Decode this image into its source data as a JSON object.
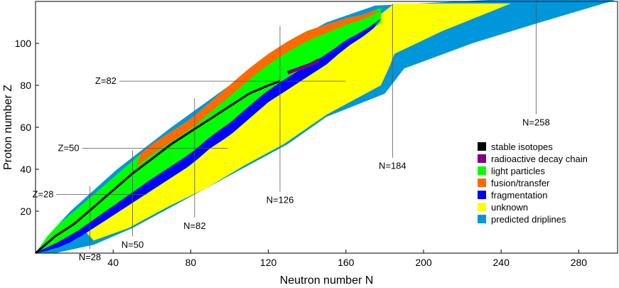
{
  "chart_data": {
    "type": "heatmap",
    "xlabel": "Neutron number N",
    "ylabel": "Proton number Z",
    "xlim": [
      0,
      300
    ],
    "ylim": [
      0,
      120
    ],
    "x_ticks": [
      40,
      80,
      120,
      160,
      200,
      240,
      280
    ],
    "y_ticks": [
      20,
      40,
      60,
      80,
      100
    ],
    "grid": false,
    "legend_position": "right",
    "legend": [
      {
        "key": "stable",
        "label": "stable isotopes",
        "color": "#000000"
      },
      {
        "key": "decay",
        "label": "radioactive decay chain",
        "color": "#800080"
      },
      {
        "key": "light",
        "label": "light particles",
        "color": "#00ff00"
      },
      {
        "key": "fusion",
        "label": "fusion/transfer",
        "color": "#ff6a00"
      },
      {
        "key": "frag",
        "label": "fragmentation",
        "color": "#0000ff"
      },
      {
        "key": "unknown",
        "label": "unknown",
        "color": "#ffff00"
      },
      {
        "key": "drip",
        "label": "predicted driplines",
        "color": "#0096db"
      }
    ],
    "magic_numbers": {
      "Z": [
        {
          "label": "Z=28",
          "value": 28
        },
        {
          "label": "Z=50",
          "value": 50
        },
        {
          "label": "Z=82",
          "value": 82
        }
      ],
      "N": [
        {
          "label": "N=28",
          "value": 28
        },
        {
          "label": "N=50",
          "value": 50
        },
        {
          "label": "N=82",
          "value": 82
        },
        {
          "label": "N=126",
          "value": 126
        },
        {
          "label": "N=184",
          "value": 184
        },
        {
          "label": "N=258",
          "value": 258
        }
      ]
    },
    "dripline_outer": [
      [
        0,
        0
      ],
      [
        8,
        10
      ],
      [
        18,
        20
      ],
      [
        30,
        30
      ],
      [
        42,
        40
      ],
      [
        56,
        50
      ],
      [
        70,
        60
      ],
      [
        85,
        70
      ],
      [
        100,
        80
      ],
      [
        115,
        90
      ],
      [
        130,
        100
      ],
      [
        150,
        110
      ],
      [
        175,
        118
      ],
      [
        240,
        121
      ],
      [
        300,
        121
      ],
      [
        260,
        110
      ],
      [
        225,
        100
      ],
      [
        190,
        88
      ],
      [
        185,
        82
      ],
      [
        180,
        76
      ],
      [
        150,
        65
      ],
      [
        130,
        52
      ],
      [
        110,
        42
      ],
      [
        90,
        32
      ],
      [
        70,
        22
      ],
      [
        50,
        12
      ],
      [
        30,
        4
      ],
      [
        10,
        0
      ]
    ],
    "unknown_region": [
      [
        20,
        16
      ],
      [
        40,
        30
      ],
      [
        60,
        44
      ],
      [
        80,
        58
      ],
      [
        100,
        70
      ],
      [
        120,
        82
      ],
      [
        140,
        95
      ],
      [
        160,
        106
      ],
      [
        178,
        114
      ],
      [
        185,
        119
      ],
      [
        245,
        119
      ],
      [
        210,
        106
      ],
      [
        185,
        95
      ],
      [
        182,
        88
      ],
      [
        178,
        80
      ],
      [
        150,
        66
      ],
      [
        128,
        52
      ],
      [
        108,
        42
      ],
      [
        88,
        31
      ],
      [
        68,
        22
      ],
      [
        48,
        12
      ],
      [
        30,
        6
      ]
    ],
    "known_band": {
      "upper": [
        [
          0,
          0
        ],
        [
          6,
          8
        ],
        [
          12,
          14
        ],
        [
          20,
          20
        ],
        [
          30,
          28
        ],
        [
          40,
          36
        ],
        [
          50,
          44
        ],
        [
          60,
          52
        ],
        [
          70,
          58
        ],
        [
          80,
          64
        ],
        [
          90,
          72
        ],
        [
          100,
          80
        ],
        [
          110,
          88
        ],
        [
          120,
          95
        ],
        [
          130,
          101
        ],
        [
          140,
          106
        ],
        [
          150,
          109
        ],
        [
          160,
          112
        ],
        [
          170,
          114
        ],
        [
          178,
          117
        ]
      ],
      "lower": [
        [
          178,
          110
        ],
        [
          170,
          104
        ],
        [
          160,
          98
        ],
        [
          150,
          90
        ],
        [
          140,
          84
        ],
        [
          130,
          78
        ],
        [
          120,
          72
        ],
        [
          110,
          64
        ],
        [
          100,
          56
        ],
        [
          90,
          50
        ],
        [
          80,
          42
        ],
        [
          70,
          36
        ],
        [
          60,
          30
        ],
        [
          50,
          24
        ],
        [
          40,
          18
        ],
        [
          30,
          12
        ],
        [
          20,
          6
        ],
        [
          10,
          2
        ],
        [
          0,
          0
        ]
      ]
    },
    "stable_valley": [
      [
        0,
        0
      ],
      [
        10,
        8
      ],
      [
        20,
        14
      ],
      [
        30,
        22
      ],
      [
        40,
        30
      ],
      [
        50,
        38
      ],
      [
        60,
        45
      ],
      [
        70,
        52
      ],
      [
        80,
        58
      ],
      [
        90,
        64
      ],
      [
        100,
        70
      ],
      [
        110,
        76
      ],
      [
        120,
        80
      ],
      [
        126,
        82
      ]
    ],
    "decay_chain": [
      [
        130,
        86
      ],
      [
        136,
        88
      ],
      [
        142,
        90
      ],
      [
        146,
        92
      ]
    ]
  }
}
